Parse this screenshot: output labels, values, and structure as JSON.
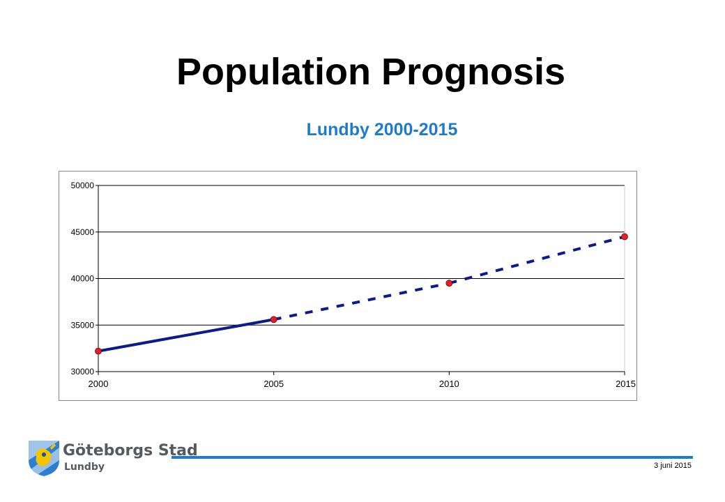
{
  "header": {
    "title": "Population Prognosis",
    "subtitle": "Lundby 2000-2015"
  },
  "chart_data": {
    "type": "line",
    "x": [
      2000,
      2005,
      2010,
      2015
    ],
    "xlim": [
      2000,
      2015
    ],
    "ylim": [
      30000,
      50000
    ],
    "y_ticks": [
      "30000",
      "35000",
      "40000",
      "45000",
      "50000"
    ],
    "x_ticks": [
      "2000",
      "2005",
      "2010",
      "2015"
    ],
    "series": [
      {
        "values": [
          32200,
          35600,
          39500,
          44500
        ],
        "line_style": [
          "solid",
          "dashed",
          "dashed"
        ],
        "line_color": "#0c1a8c",
        "marker_color": "#e0202a"
      }
    ],
    "grid": "horizontal",
    "legend": "none"
  },
  "footer": {
    "org_name": "Göteborgs Stad",
    "district": "Lundby",
    "date": "3 juni 2015",
    "accent_color": "#1f7bc9"
  }
}
